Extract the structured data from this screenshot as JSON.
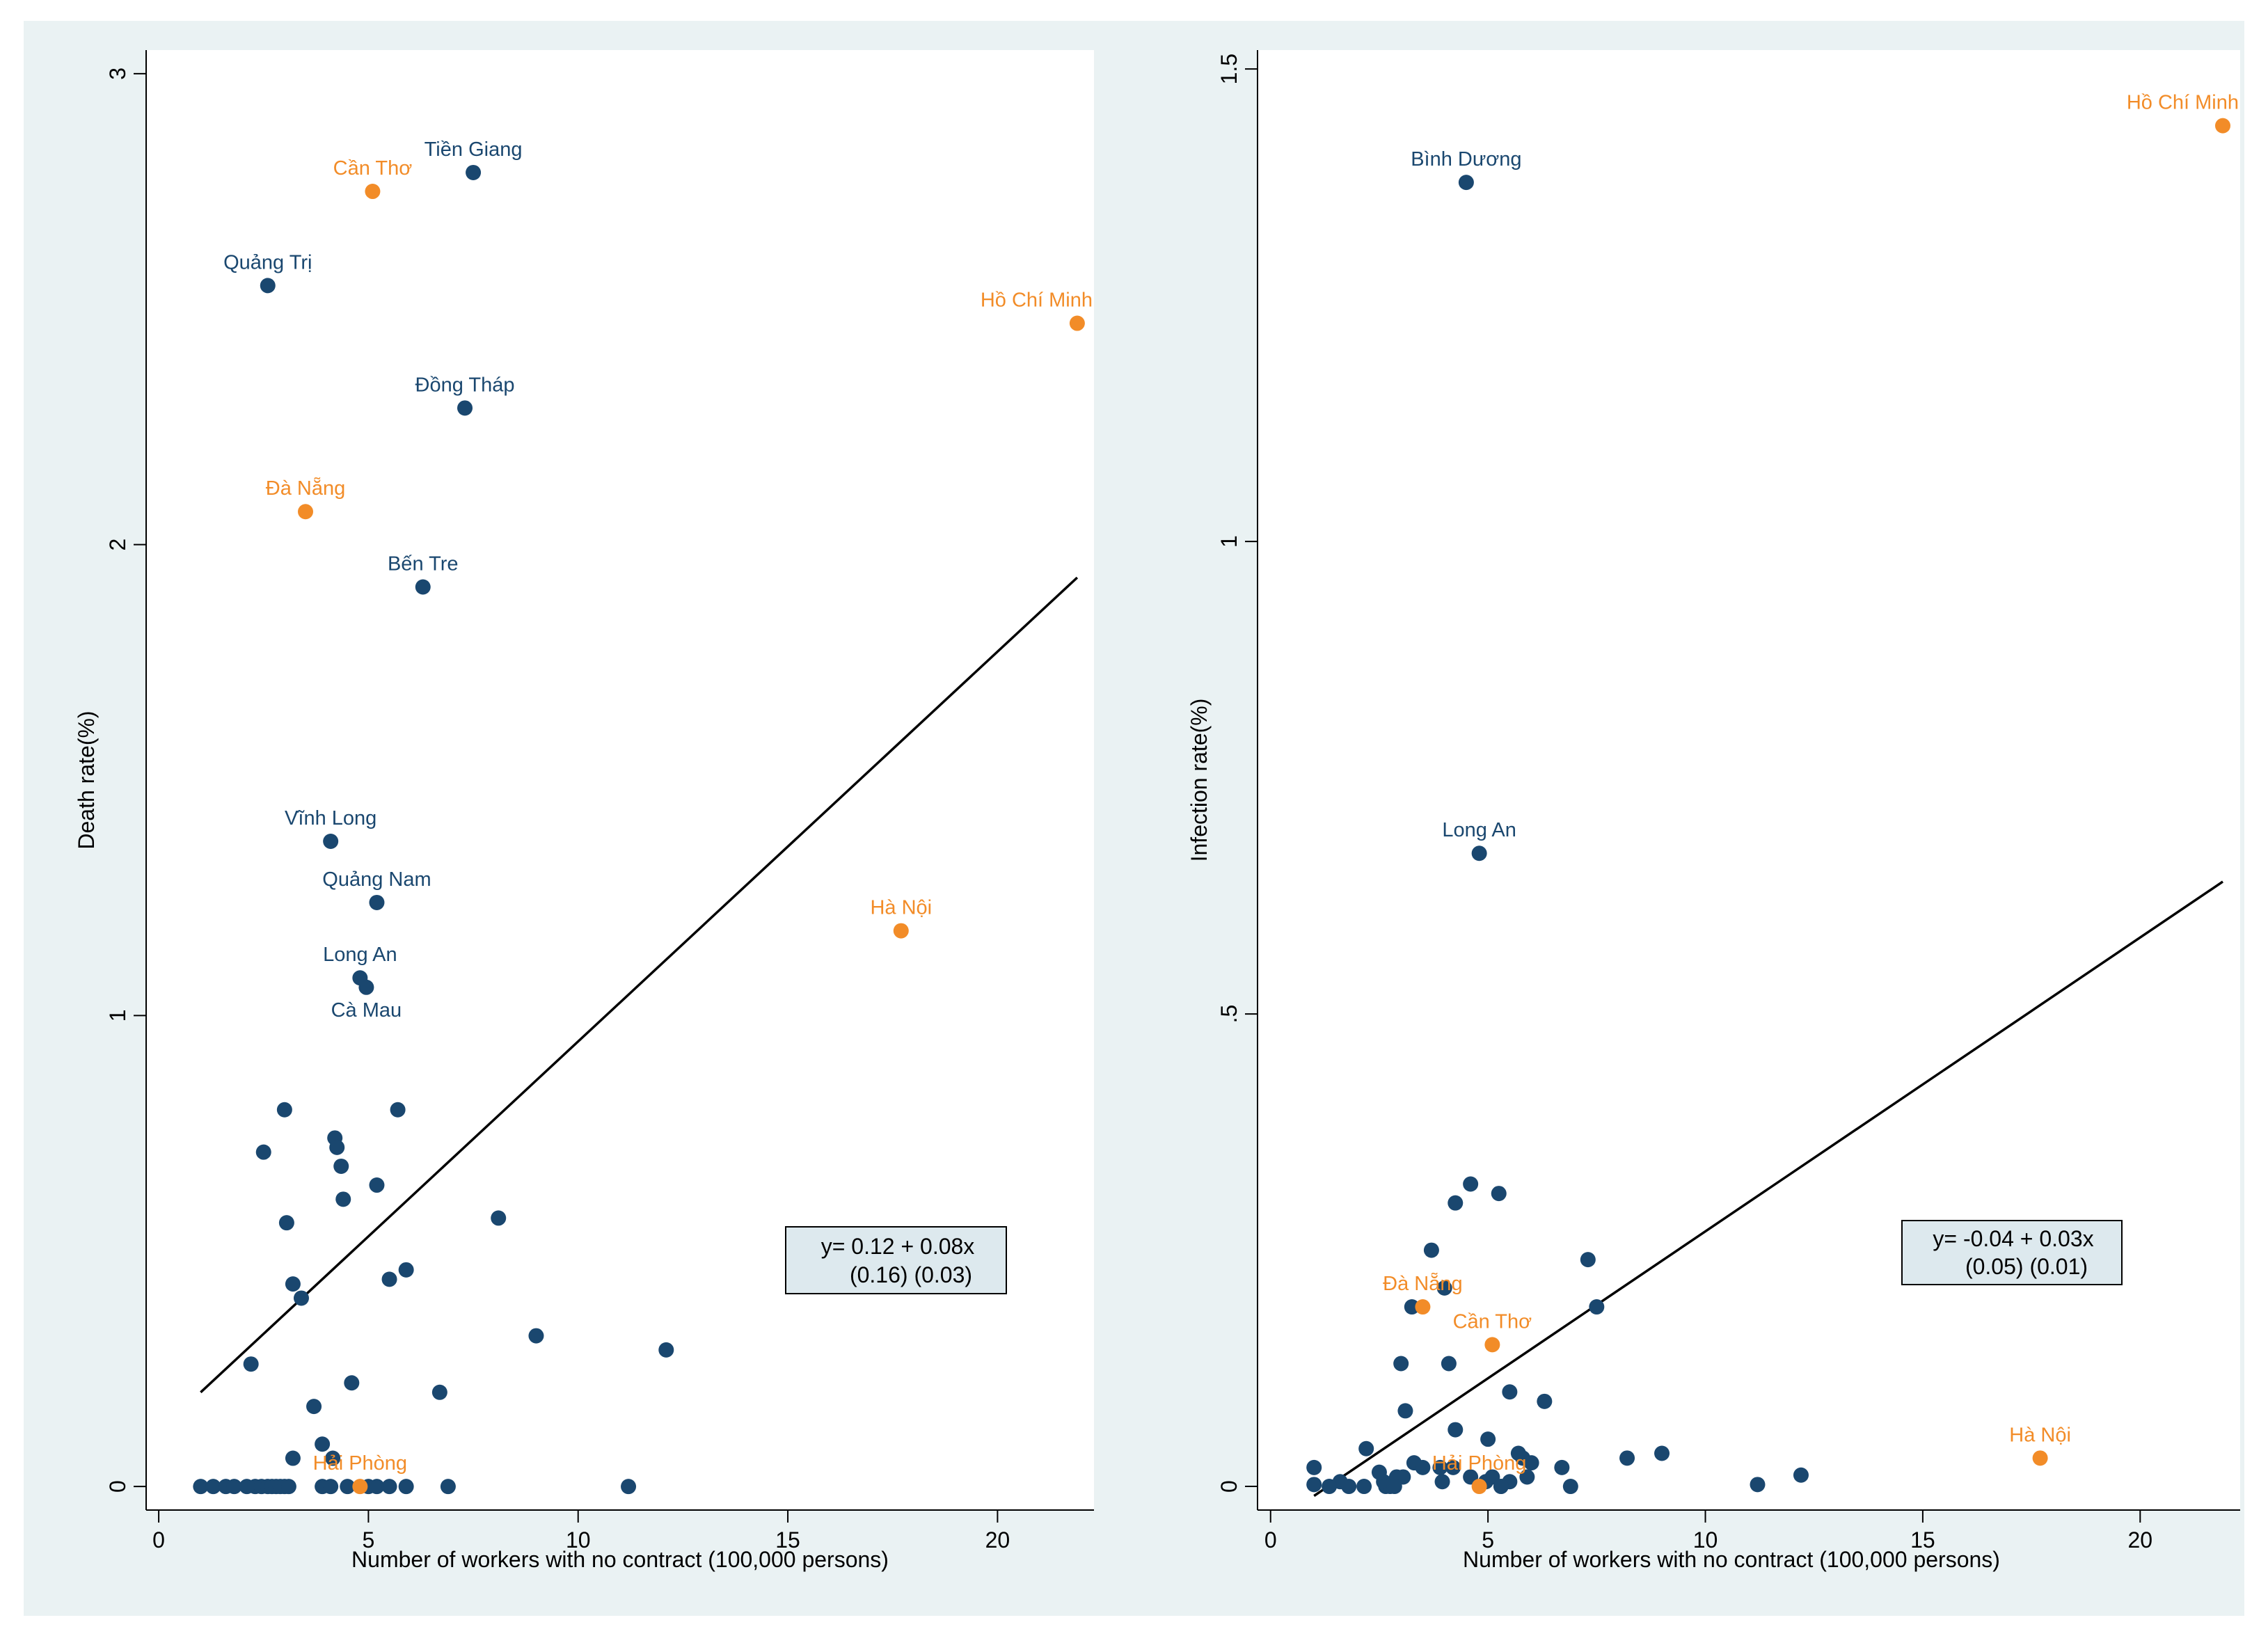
{
  "chart_data": [
    {
      "type": "scatter",
      "xlabel": "Number of workers with no contract (100,000 persons)",
      "ylabel": "Death rate(%)",
      "xlim": [
        -0.3,
        22.3
      ],
      "ylim": [
        -0.05,
        3.05
      ],
      "xticks": [
        {
          "v": 0,
          "label": "0"
        },
        {
          "v": 5,
          "label": "5"
        },
        {
          "v": 10,
          "label": "10"
        },
        {
          "v": 15,
          "label": "15"
        },
        {
          "v": 20,
          "label": "20"
        }
      ],
      "yticks": [
        {
          "v": 0,
          "label": "0"
        },
        {
          "v": 1,
          "label": "1"
        },
        {
          "v": 2,
          "label": "2"
        },
        {
          "v": 3,
          "label": "3"
        }
      ],
      "fit_line": {
        "x1": 1.0,
        "y1": 0.2,
        "x2": 21.9,
        "y2": 1.93
      },
      "equation": {
        "line1": "y= 0.12 + 0.08x",
        "line2": "(0.16)  (0.03)"
      },
      "colors": {
        "dark": "#1a476f",
        "orange": "#f28c28",
        "line": "#000000",
        "plot_bg": "#ffffff",
        "outer_bg": "#eaf2f3",
        "box_bg": "#dde9ee"
      },
      "labeled_points": [
        {
          "x": 7.5,
          "y": 2.79,
          "label": "Tiền Giang",
          "group": "dark"
        },
        {
          "x": 5.1,
          "y": 2.75,
          "label": "Cần Thơ",
          "group": "orange"
        },
        {
          "x": 2.6,
          "y": 2.55,
          "label": "Quảng Trị",
          "group": "dark"
        },
        {
          "x": 21.9,
          "y": 2.47,
          "label": "Hồ Chí Minh",
          "group": "orange"
        },
        {
          "x": 7.3,
          "y": 2.29,
          "label": "Đồng Tháp",
          "group": "dark"
        },
        {
          "x": 3.5,
          "y": 2.07,
          "label": "Đà Nẵng",
          "group": "orange"
        },
        {
          "x": 6.3,
          "y": 1.91,
          "label": "Bến Tre",
          "group": "dark"
        },
        {
          "x": 4.1,
          "y": 1.37,
          "label": "Vĩnh Long",
          "group": "dark"
        },
        {
          "x": 5.2,
          "y": 1.24,
          "label": "Quảng Nam",
          "group": "dark"
        },
        {
          "x": 17.7,
          "y": 1.18,
          "label": "Hà Nội",
          "group": "orange"
        },
        {
          "x": 4.8,
          "y": 1.08,
          "label": "Long An",
          "group": "dark",
          "label_pos": "above"
        },
        {
          "x": 4.95,
          "y": 1.06,
          "label": "Cà Mau",
          "group": "dark",
          "label_pos": "below"
        },
        {
          "x": 4.8,
          "y": 0.0,
          "label": "Hải Phòng",
          "group": "orange"
        }
      ],
      "other_points": [
        [
          3.0,
          0.8
        ],
        [
          5.7,
          0.8
        ],
        [
          4.2,
          0.74
        ],
        [
          4.25,
          0.72
        ],
        [
          2.5,
          0.71
        ],
        [
          4.35,
          0.68
        ],
        [
          5.2,
          0.64
        ],
        [
          4.4,
          0.61
        ],
        [
          3.05,
          0.56
        ],
        [
          8.1,
          0.57
        ],
        [
          5.9,
          0.46
        ],
        [
          5.5,
          0.44
        ],
        [
          3.2,
          0.43
        ],
        [
          3.4,
          0.4
        ],
        [
          9.0,
          0.32
        ],
        [
          12.1,
          0.29
        ],
        [
          2.2,
          0.26
        ],
        [
          4.6,
          0.22
        ],
        [
          6.7,
          0.2
        ],
        [
          3.7,
          0.17
        ],
        [
          3.9,
          0.09
        ],
        [
          3.2,
          0.06
        ],
        [
          4.15,
          0.06
        ],
        [
          1.0,
          0
        ],
        [
          1.3,
          0
        ],
        [
          1.6,
          0
        ],
        [
          1.8,
          0
        ],
        [
          2.1,
          0
        ],
        [
          2.3,
          0
        ],
        [
          2.45,
          0
        ],
        [
          2.6,
          0
        ],
        [
          2.7,
          0
        ],
        [
          2.8,
          0
        ],
        [
          2.9,
          0
        ],
        [
          3.0,
          0
        ],
        [
          3.1,
          0
        ],
        [
          3.9,
          0
        ],
        [
          4.1,
          0
        ],
        [
          4.5,
          0
        ],
        [
          5.0,
          0
        ],
        [
          5.2,
          0
        ],
        [
          5.5,
          0
        ],
        [
          5.9,
          0
        ],
        [
          6.9,
          0
        ],
        [
          11.2,
          0
        ]
      ]
    },
    {
      "type": "scatter",
      "xlabel": "Number of workers with no contract (100,000 persons)",
      "ylabel": "Infection rate(%)",
      "xlim": [
        -0.3,
        22.3
      ],
      "ylim": [
        -0.025,
        1.52
      ],
      "xticks": [
        {
          "v": 0,
          "label": "0"
        },
        {
          "v": 5,
          "label": "5"
        },
        {
          "v": 10,
          "label": "10"
        },
        {
          "v": 15,
          "label": "15"
        },
        {
          "v": 20,
          "label": "20"
        }
      ],
      "yticks": [
        {
          "v": 0,
          "label": "0"
        },
        {
          "v": 0.5,
          "label": ".5"
        },
        {
          "v": 1,
          "label": "1"
        },
        {
          "v": 1.5,
          "label": "1.5"
        }
      ],
      "fit_line": {
        "x1": 1.0,
        "y1": -0.01,
        "x2": 21.9,
        "y2": 0.64
      },
      "equation": {
        "line1": "y= -0.04 + 0.03x",
        "line2": "(0.05)  (0.01)"
      },
      "colors": {
        "dark": "#1a476f",
        "orange": "#f28c28",
        "line": "#000000",
        "plot_bg": "#ffffff",
        "outer_bg": "#eaf2f3",
        "box_bg": "#dde9ee"
      },
      "labeled_points": [
        {
          "x": 21.9,
          "y": 1.44,
          "label": "Hồ Chí Minh",
          "group": "orange"
        },
        {
          "x": 4.5,
          "y": 1.38,
          "label": "Bình Dương",
          "group": "dark"
        },
        {
          "x": 4.8,
          "y": 0.67,
          "label": "Long An",
          "group": "dark"
        },
        {
          "x": 3.5,
          "y": 0.19,
          "label": "Đà Nẵng",
          "group": "orange"
        },
        {
          "x": 5.1,
          "y": 0.15,
          "label": "Cần Thơ",
          "group": "orange"
        },
        {
          "x": 17.7,
          "y": 0.03,
          "label": "Hà Nội",
          "group": "orange"
        },
        {
          "x": 4.8,
          "y": 0.0,
          "label": "Hải Phòng",
          "group": "orange"
        }
      ],
      "other_points": [
        [
          4.6,
          0.32
        ],
        [
          5.25,
          0.31
        ],
        [
          4.25,
          0.3
        ],
        [
          3.7,
          0.25
        ],
        [
          7.3,
          0.24
        ],
        [
          4.0,
          0.21
        ],
        [
          3.25,
          0.19
        ],
        [
          7.5,
          0.19
        ],
        [
          3.0,
          0.13
        ],
        [
          4.1,
          0.13
        ],
        [
          5.5,
          0.1
        ],
        [
          6.3,
          0.09
        ],
        [
          3.1,
          0.08
        ],
        [
          4.25,
          0.06
        ],
        [
          5.0,
          0.05
        ],
        [
          2.2,
          0.04
        ],
        [
          5.7,
          0.035
        ],
        [
          9.0,
          0.035
        ],
        [
          8.2,
          0.03
        ],
        [
          5.8,
          0.03
        ],
        [
          6.0,
          0.025
        ],
        [
          3.3,
          0.025
        ],
        [
          3.5,
          0.02
        ],
        [
          3.9,
          0.02
        ],
        [
          4.2,
          0.02
        ],
        [
          6.7,
          0.02
        ],
        [
          1.0,
          0.02
        ],
        [
          2.5,
          0.015
        ],
        [
          12.2,
          0.012
        ],
        [
          2.9,
          0.01
        ],
        [
          3.05,
          0.01
        ],
        [
          4.6,
          0.01
        ],
        [
          5.1,
          0.01
        ],
        [
          5.9,
          0.01
        ],
        [
          1.6,
          0.005
        ],
        [
          2.6,
          0.005
        ],
        [
          3.95,
          0.005
        ],
        [
          5.5,
          0.005
        ],
        [
          1.0,
          0.002
        ],
        [
          1.35,
          0
        ],
        [
          1.8,
          0
        ],
        [
          2.15,
          0
        ],
        [
          2.65,
          0
        ],
        [
          2.75,
          0
        ],
        [
          2.85,
          0
        ],
        [
          5.3,
          0
        ],
        [
          6.9,
          0
        ],
        [
          11.2,
          0.002
        ],
        [
          4.95,
          0.005
        ]
      ]
    }
  ]
}
